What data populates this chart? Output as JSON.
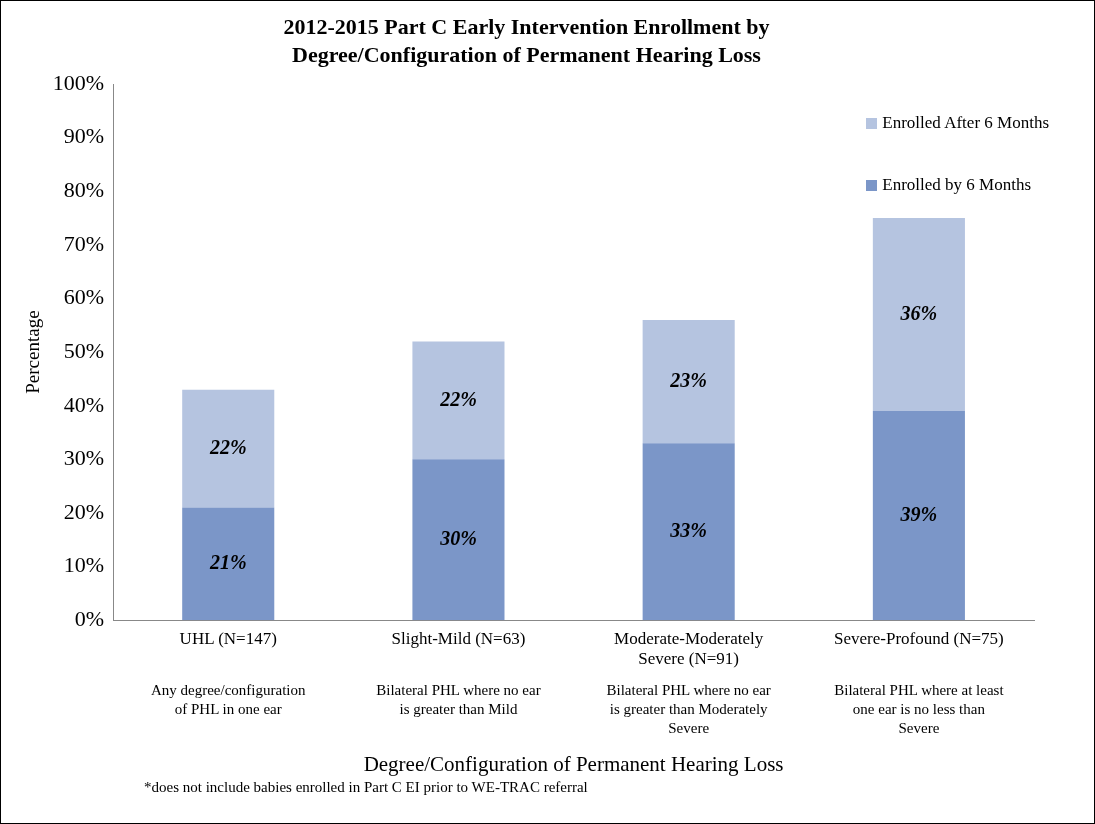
{
  "chart_data": {
    "type": "bar",
    "stacked": true,
    "title": "2012-2015 Part C Early Intervention Enrollment by\nDegree/Configuration of Permanent Hearing Loss",
    "xlabel": "Degree/Configuration of Permanent Hearing Loss",
    "ylabel": "Percentage",
    "categories": [
      "UHL (N=147)",
      "Slight-Mild (N=63)",
      "Moderate-Moderately Severe (N=91)",
      "Severe-Profound (N=75)"
    ],
    "series": [
      {
        "name": "Enrolled by 6 Months",
        "color": "#7b96c8",
        "values": [
          21,
          30,
          33,
          39
        ]
      },
      {
        "name": "Enrolled After 6 Months",
        "color": "#b5c4e0",
        "values": [
          22,
          22,
          23,
          36
        ]
      }
    ],
    "ylim": [
      0,
      100
    ],
    "yticks": [
      {
        "value": 0,
        "label": "0%"
      },
      {
        "value": 10,
        "label": "10%"
      },
      {
        "value": 20,
        "label": "20%"
      },
      {
        "value": 30,
        "label": "30%"
      },
      {
        "value": 40,
        "label": "40%"
      },
      {
        "value": 50,
        "label": "50%"
      },
      {
        "value": 60,
        "label": "60%"
      },
      {
        "value": 70,
        "label": "70%"
      },
      {
        "value": 80,
        "label": "80%"
      },
      {
        "value": 90,
        "label": "90%"
      },
      {
        "value": 100,
        "label": "100%"
      }
    ],
    "value_labels": [
      [
        "21%",
        "30%",
        "33%",
        "39%"
      ],
      [
        "22%",
        "22%",
        "23%",
        "36%"
      ]
    ],
    "grid": false,
    "legend": "top right",
    "annotations": [
      "Any degree/configuration of PHL in one ear",
      "Bilateral PHL where no ear is greater than Mild",
      "Bilateral PHL where no ear is greater than Moderately Severe",
      "Bilateral PHL where at least one ear is no less than Severe",
      "*does not include babies enrolled in Part C EI prior to WE-TRAC referral"
    ]
  }
}
